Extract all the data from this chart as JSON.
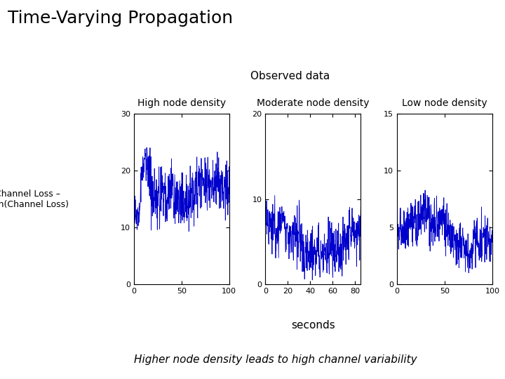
{
  "title": "Time-Varying Propagation",
  "observed_data_label": "Observed data",
  "subplot_titles": [
    "High node density",
    "Moderate node density",
    "Low node density"
  ],
  "ylabel": "Channel Loss –\nmin(Channel Loss)",
  "xlabel": "seconds",
  "bottom_text": "Higher node density leads to high channel variability",
  "plot1_ylim": [
    0,
    30
  ],
  "plot2_ylim": [
    0,
    20
  ],
  "plot3_ylim": [
    0,
    15
  ],
  "plot1_xlim": [
    0,
    100
  ],
  "plot2_xlim": [
    0,
    85
  ],
  "plot3_xlim": [
    0,
    100
  ],
  "plot1_yticks": [
    0,
    10,
    20,
    30
  ],
  "plot2_yticks": [
    0,
    10,
    20
  ],
  "plot3_yticks": [
    0,
    5,
    10,
    15
  ],
  "plot1_xticks": [
    0,
    50,
    100
  ],
  "plot2_xticks": [
    0,
    20,
    40,
    60,
    80
  ],
  "plot3_xticks": [
    0,
    50,
    100
  ],
  "line_color": "#0000CC",
  "background_color": "#ffffff"
}
